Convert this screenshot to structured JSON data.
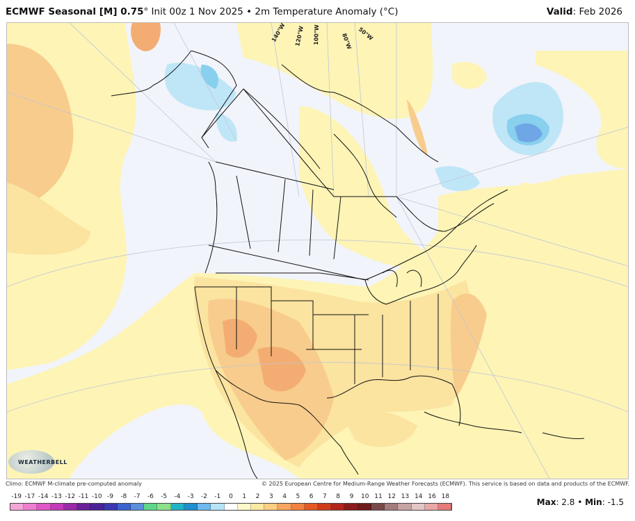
{
  "header": {
    "title_bold": "ECMWF Seasonal [M] 0.75",
    "title_rest": "° Init 00z 1 Nov 2025 • 2m Temperature Anomaly (°C)",
    "valid_label": "Valid",
    "valid_value": ": Feb 2026"
  },
  "map": {
    "longitude_labels": [
      "140°W",
      "120°W",
      "100°W",
      "80°W",
      "50°W"
    ],
    "colors": {
      "ocean_neutral": "#f2f4fb",
      "warm_1": "#fdf4b6",
      "warm_2": "#fbe3a0",
      "warm_3": "#f8cc8c",
      "warm_4": "#f3ad72",
      "cool_1": "#bfe6f7",
      "cool_2": "#89cfee",
      "cool_3": "#6fa6e6",
      "borders": "#111111"
    }
  },
  "footer": {
    "climo_note": "Climo: ECMWF M-climate pre-computed anomaly",
    "copyright": "© 2025 European Centre for Medium-Range Weather Forecasts (ECMWF). This service is based on data and products of the ECMWF.",
    "logo_text": "WEATHERBELL"
  },
  "colorbar": {
    "labels": [
      "-19",
      "-17",
      "-14",
      "-13",
      "-12",
      "-11",
      "-10",
      "-9",
      "-8",
      "-7",
      "-6",
      "-5",
      "-4",
      "-3",
      "-2",
      "-1",
      "0",
      "1",
      "2",
      "3",
      "4",
      "5",
      "6",
      "7",
      "8",
      "9",
      "10",
      "11",
      "12",
      "13",
      "14",
      "16",
      "18"
    ],
    "colors": [
      "#f4a6d7",
      "#ee7fd0",
      "#e058c8",
      "#c43aba",
      "#9b2aa9",
      "#6b2198",
      "#4b2196",
      "#3a37b0",
      "#3b63cf",
      "#5b8fdc",
      "#5fd68a",
      "#8be08a",
      "#22b3c5",
      "#1f8fd0",
      "#6fb9ee",
      "#b7e3f8",
      "#ffffff",
      "#fdf8c8",
      "#fde9a2",
      "#fccf83",
      "#f7a562",
      "#f1823f",
      "#e45a25",
      "#cf3d1c",
      "#b3261b",
      "#8b1a1a",
      "#6e1b1b",
      "#7a4a4a",
      "#a47c7c",
      "#c7a4a4",
      "#e2c6c6",
      "#e9a7a7",
      "#e57b7b"
    ]
  },
  "stats": {
    "max_label": "Max",
    "max_value": "2.8",
    "min_label": "Min",
    "min_value": "-1.5"
  }
}
